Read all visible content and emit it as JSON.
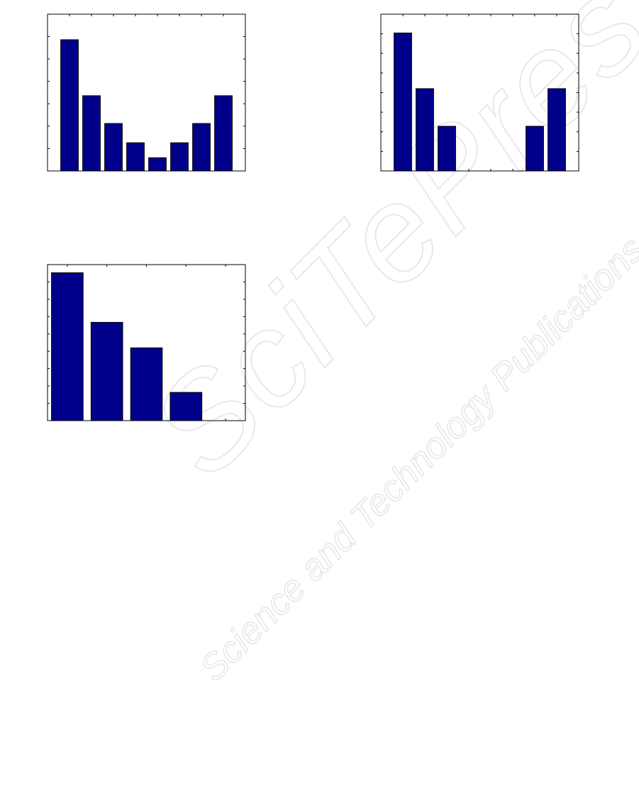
{
  "watermark": {
    "logo_text": "SciTePress",
    "tagline": "Science and Technology Publications"
  },
  "colors": {
    "bar_fill": "#00008B",
    "bar_edge": "#000000",
    "axes": "#000000"
  },
  "chart_data": [
    {
      "type": "bar",
      "categories": [
        1,
        2,
        3,
        4,
        5,
        6,
        7,
        8
      ],
      "values": [
        5.86,
        3.36,
        2.12,
        1.26,
        0.59,
        1.26,
        2.12,
        3.36
      ],
      "title": "",
      "xlabel": "",
      "ylabel": "",
      "xlim": [
        0,
        9
      ],
      "ylim": [
        0,
        7
      ],
      "xticks": [
        1,
        2,
        3,
        4,
        5,
        6,
        7,
        8
      ],
      "yticks": [
        1,
        2,
        3,
        4,
        5,
        6
      ],
      "tick_labels_shown": false,
      "grid": false
    },
    {
      "type": "bar",
      "categories": [
        1,
        2,
        3,
        4,
        5,
        6,
        7,
        8
      ],
      "values": [
        7.04,
        4.2,
        2.28,
        0,
        0,
        0,
        2.28,
        4.2
      ],
      "title": "",
      "xlabel": "",
      "ylabel": "",
      "xlim": [
        0,
        9
      ],
      "ylim": [
        0,
        8
      ],
      "xticks": [
        1,
        2,
        3,
        4,
        5,
        6,
        7,
        8
      ],
      "yticks": [
        1,
        2,
        3,
        4,
        5,
        6,
        7
      ],
      "tick_labels_shown": false,
      "grid": false
    },
    {
      "type": "bar",
      "categories": [
        1,
        2,
        3,
        4,
        5
      ],
      "values": [
        8.53,
        5.67,
        4.2,
        1.63,
        0
      ],
      "title": "",
      "xlabel": "",
      "ylabel": "",
      "xlim": [
        0.5,
        5.5
      ],
      "ylim": [
        0,
        9
      ],
      "xticks": [
        1,
        2,
        3,
        4,
        5
      ],
      "yticks": [
        1,
        2,
        3,
        4,
        5,
        6,
        7,
        8
      ],
      "tick_labels_shown": false,
      "grid": false
    }
  ]
}
